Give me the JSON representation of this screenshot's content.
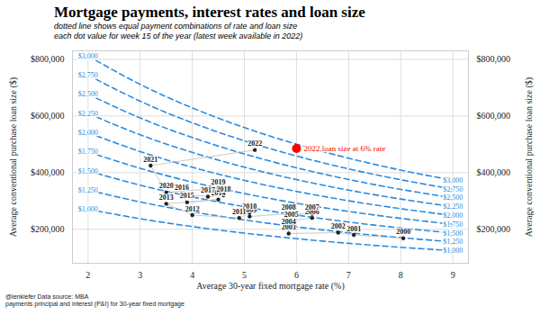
{
  "chart_data": {
    "type": "scatter",
    "title": "Mortgage payments, interest rates and loan size",
    "subtitle": [
      "dotted line shows equal payment combinations of rate and loan size",
      "each dot value for week 15 of the year (latest week available in 2022)"
    ],
    "caption": [
      "@lenkiefer Data source: MBA",
      "payments principal and interest (P&I) for 30-year fixed mortgage"
    ],
    "xlabel": "Average 30-year fixed mortgage rate (%)",
    "ylabel": "Average conventional purchase loan size ($)",
    "xlim": [
      1.7,
      9.3
    ],
    "xticks": [
      2,
      3,
      4,
      5,
      6,
      7,
      8,
      9
    ],
    "ylim": [
      80000,
      830000
    ],
    "yticks": [
      {
        "value": 200000,
        "label": "$200,000"
      },
      {
        "value": 400000,
        "label": "$400,000"
      },
      {
        "value": 600000,
        "label": "$600,000"
      },
      {
        "value": 800000,
        "label": "$800,000"
      }
    ],
    "grid": true,
    "points": {
      "categories": [
        "2000",
        "2001",
        "2002",
        "2003",
        "2004",
        "2005",
        "2006",
        "2007",
        "2008",
        "2009",
        "2010",
        "2011",
        "2012",
        "2013",
        "2014",
        "2015",
        "2016",
        "2017",
        "2018",
        "2019",
        "2020",
        "2021",
        "2022"
      ],
      "x": [
        8.05,
        7.1,
        6.8,
        5.85,
        5.85,
        5.9,
        6.3,
        6.3,
        5.85,
        5.1,
        5.1,
        4.9,
        4.0,
        3.5,
        4.5,
        3.9,
        3.8,
        4.3,
        4.6,
        4.5,
        3.5,
        3.2,
        5.2
      ],
      "values": [
        168000,
        180000,
        188000,
        185000,
        205000,
        230000,
        240000,
        255000,
        255000,
        245000,
        258000,
        240000,
        250000,
        290000,
        305000,
        295000,
        325000,
        315000,
        320000,
        345000,
        330000,
        425000,
        480000
      ],
      "color": "#222222",
      "marker": "circle",
      "line_style": "solid"
    },
    "series": [
      {
        "name": "$1,000",
        "color": "#2b8ce0",
        "line_style": "dashed",
        "x": [
          2,
          3,
          4,
          5,
          6,
          7,
          8,
          9
        ],
        "values": [
          270600,
          237200,
          209500,
          186300,
          166800,
          150300,
          136300,
          124300
        ]
      },
      {
        "name": "$1,250",
        "color": "#2b8ce0",
        "line_style": "dashed",
        "x": [
          2,
          3,
          4,
          5,
          6,
          7,
          8,
          9
        ],
        "values": [
          338300,
          296500,
          261900,
          232900,
          208500,
          187900,
          170400,
          155400
        ]
      },
      {
        "name": "$1,500",
        "color": "#2b8ce0",
        "line_style": "dashed",
        "x": [
          2,
          3,
          4,
          5,
          6,
          7,
          8,
          9
        ],
        "values": [
          405900,
          355800,
          314300,
          279500,
          250200,
          225500,
          204500,
          186500
        ]
      },
      {
        "name": "$1,750",
        "color": "#2b8ce0",
        "line_style": "dashed",
        "x": [
          2,
          3,
          4,
          5,
          6,
          7,
          8,
          9
        ],
        "values": [
          473600,
          415100,
          366600,
          326000,
          291900,
          263000,
          238500,
          217500
        ]
      },
      {
        "name": "$2,000",
        "color": "#2b8ce0",
        "line_style": "dashed",
        "x": [
          2,
          3,
          4,
          5,
          6,
          7,
          8,
          9
        ],
        "values": [
          541200,
          474400,
          419000,
          372600,
          333600,
          300600,
          272600,
          248600
        ]
      },
      {
        "name": "$2,250",
        "color": "#2b8ce0",
        "line_style": "dashed",
        "x": [
          2,
          3,
          4,
          5,
          6,
          7,
          8,
          9
        ],
        "values": [
          608900,
          533700,
          471400,
          419200,
          375300,
          338200,
          306700,
          279700
        ]
      },
      {
        "name": "$2,500",
        "color": "#2b8ce0",
        "line_style": "dashed",
        "x": [
          2,
          3,
          4,
          5,
          6,
          7,
          8,
          9
        ],
        "values": [
          676500,
          593000,
          523800,
          465800,
          417000,
          375800,
          340800,
          310800
        ]
      },
      {
        "name": "$2,750",
        "color": "#2b8ce0",
        "line_style": "dashed",
        "x": [
          2,
          3,
          4,
          5,
          6,
          7,
          8,
          9
        ],
        "values": [
          744200,
          652300,
          576100,
          512300,
          458700,
          413300,
          374800,
          341800
        ]
      },
      {
        "name": "$3,000",
        "color": "#2b8ce0",
        "line_style": "dashed",
        "x": [
          2,
          3,
          4,
          5,
          6,
          7,
          8,
          9
        ],
        "values": [
          811800,
          711600,
          628500,
          558900,
          500400,
          450900,
          408900,
          372900
        ]
      }
    ],
    "annotation": {
      "text": "2022 loan size at 6% rate",
      "x": 6,
      "value": 485000,
      "color": "#ff0000",
      "marker": "circle"
    }
  }
}
